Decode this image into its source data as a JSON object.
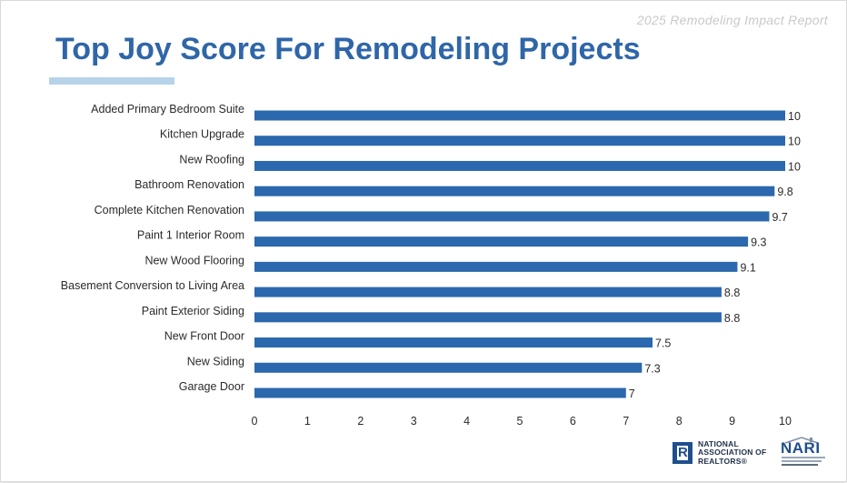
{
  "header": {
    "report_title": "2025 Remodeling Impact Report",
    "page_title": "Top Joy Score For Remodeling Projects"
  },
  "colors": {
    "title": "#2f66a8",
    "bar": "#2b68ad",
    "underline": "#b7d3ea",
    "report_title": "#c9c9c9"
  },
  "chart_data": {
    "type": "bar",
    "orientation": "horizontal",
    "categories": [
      "Added Primary Bedroom Suite",
      "Kitchen Upgrade",
      "New Roofing",
      "Bathroom Renovation",
      "Complete Kitchen Renovation",
      "Paint 1 Interior Room",
      "New Wood Flooring",
      "Basement Conversion to Living Area",
      "Paint Exterior Siding",
      "New Front Door",
      "New Siding",
      "Garage Door"
    ],
    "values": [
      10,
      10,
      10,
      9.8,
      9.7,
      9.3,
      9.1,
      8.8,
      8.8,
      7.5,
      7.3,
      7
    ],
    "value_labels": [
      "10",
      "10",
      "10",
      "9.8",
      "9.7",
      "9.3",
      "9.1",
      "8.8",
      "8.8",
      "7.5",
      "7.3",
      "7"
    ],
    "x_ticks": [
      "0",
      "1",
      "2",
      "3",
      "4",
      "5",
      "6",
      "7",
      "8",
      "9",
      "10"
    ],
    "xlim": [
      0,
      10
    ],
    "grid": false,
    "legend": "none"
  },
  "footer": {
    "nar_logo": {
      "icon": "realtor-r-icon",
      "lines": [
        "NATIONAL",
        "ASSOCIATION OF",
        "REALTORS®"
      ]
    },
    "nari_logo": {
      "icon": "nari-roof-icon",
      "word": "NARI"
    }
  }
}
